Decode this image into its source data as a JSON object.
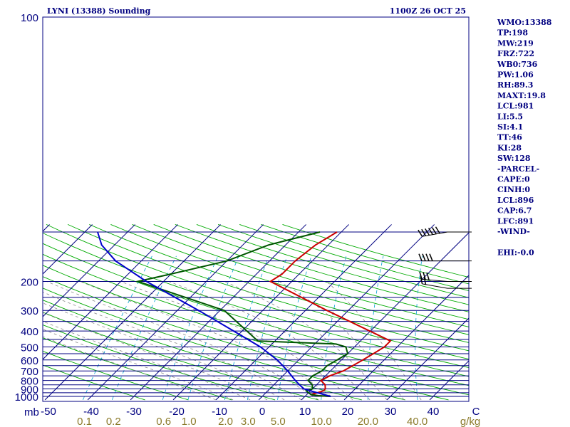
{
  "header": {
    "title": "LYNI (13388) Sounding",
    "timestamp": "1100Z 26 OCT 25"
  },
  "stats": [
    "WMO:13388",
    "TP:198",
    "MW:219",
    "FRZ:722",
    "WB0:736",
    "PW:1.06",
    "RH:89.3",
    "MAXT:19.8",
    "LCL:981",
    "LI:5.5",
    "SI:4.1",
    "TT:46",
    "KI:28",
    "SW:128",
    "-PARCEL-",
    "CAPE:0",
    "CINH:0",
    "LCL:896",
    "CAP:6.7",
    "LFC:891",
    "-WIND-",
    "",
    "EHI:-0.0"
  ],
  "colors": {
    "frame": "#000080",
    "isobar": "#000080",
    "isotherm": "#000080",
    "dry_adiabat": "#00aa00",
    "moist_adiabat": "#888888",
    "mixing_ratio": "#00a0d0",
    "temperature": "#cc0000",
    "dewpoint": "#005500",
    "parcel": "#0000cc",
    "mixing_labels": "#8b7a2a"
  },
  "chart_data": {
    "type": "skew-t",
    "ylabel": "mb",
    "xlabel_unit": "C",
    "mixing_unit": "g/kg",
    "ylim": [
      1000,
      100
    ],
    "xlim": [
      -50,
      50
    ],
    "pressure_tick_labels": [
      "100",
      "200",
      "300",
      "400",
      "500",
      "600",
      "700",
      "800",
      "900",
      "1000"
    ],
    "pressure_ticks": [
      100,
      200,
      300,
      400,
      500,
      600,
      700,
      800,
      900,
      1000
    ],
    "isobars_drawn": [
      100,
      150,
      200,
      250,
      300,
      350,
      400,
      450,
      500,
      550,
      600,
      650,
      700,
      750,
      800,
      850,
      900,
      950,
      1000
    ],
    "temperature_tick_labels": [
      "-50",
      "-40",
      "-30",
      "-20",
      "-10",
      "0",
      "10",
      "20",
      "30",
      "40",
      "C"
    ],
    "mixing_ratio_labels": [
      "0.1",
      "0.2",
      "0.6",
      "1.0",
      "2.0",
      "3.0",
      "5.0",
      "10.0",
      "20.0",
      "40.0",
      "g/kg"
    ],
    "mixing_ratio_values": [
      0.1,
      0.2,
      0.6,
      1.0,
      2.0,
      3.0,
      5.0,
      10.0,
      20.0,
      40.0
    ],
    "series": [
      {
        "points": [
          [
            1000,
            16
          ],
          [
            990,
            13
          ],
          [
            975,
            11
          ],
          [
            950,
            12
          ],
          [
            925,
            13
          ],
          [
            900,
            13
          ],
          [
            850,
            12
          ],
          [
            800,
            10
          ],
          [
            750,
            11
          ],
          [
            700,
            13
          ],
          [
            650,
            14
          ],
          [
            600,
            15
          ],
          [
            550,
            16
          ],
          [
            500,
            17
          ],
          [
            480,
            17
          ],
          [
            460,
            17
          ],
          [
            300,
            -5
          ],
          [
            200,
            -25
          ],
          [
            180,
            -24
          ],
          [
            150,
            -24
          ],
          [
            120,
            -23
          ],
          [
            100,
            -21
          ]
        ]
      },
      {
        "points": [
          [
            1000,
            16
          ],
          [
            990,
            13
          ],
          [
            975,
            11
          ],
          [
            950,
            10
          ],
          [
            925,
            9
          ],
          [
            900,
            10
          ],
          [
            850,
            9
          ],
          [
            800,
            7
          ],
          [
            750,
            7
          ],
          [
            700,
            8
          ],
          [
            650,
            8
          ],
          [
            600,
            9
          ],
          [
            550,
            10
          ],
          [
            500,
            8
          ],
          [
            480,
            5
          ],
          [
            460,
            -14
          ],
          [
            300,
            -29
          ],
          [
            200,
            -56
          ],
          [
            180,
            -50
          ],
          [
            150,
            -40
          ],
          [
            120,
            -34
          ],
          [
            100,
            -25
          ]
        ]
      },
      {
        "points": [
          [
            1000,
            16
          ],
          [
            925,
            10
          ],
          [
            900,
            8
          ],
          [
            850,
            6
          ],
          [
            800,
            4
          ],
          [
            700,
            0
          ],
          [
            600,
            -5
          ],
          [
            500,
            -12
          ],
          [
            400,
            -22
          ],
          [
            300,
            -35
          ],
          [
            200,
            -54
          ],
          [
            150,
            -66
          ],
          [
            120,
            -73
          ],
          [
            100,
            -77
          ]
        ]
      }
    ],
    "wind_barbs": [
      {
        "p": 100,
        "dir": 260,
        "kt": 60
      },
      {
        "p": 150,
        "dir": 270,
        "kt": 45
      },
      {
        "p": 200,
        "dir": 275,
        "kt": 30
      },
      {
        "p": 220,
        "dir": 280,
        "kt": 25
      }
    ]
  }
}
